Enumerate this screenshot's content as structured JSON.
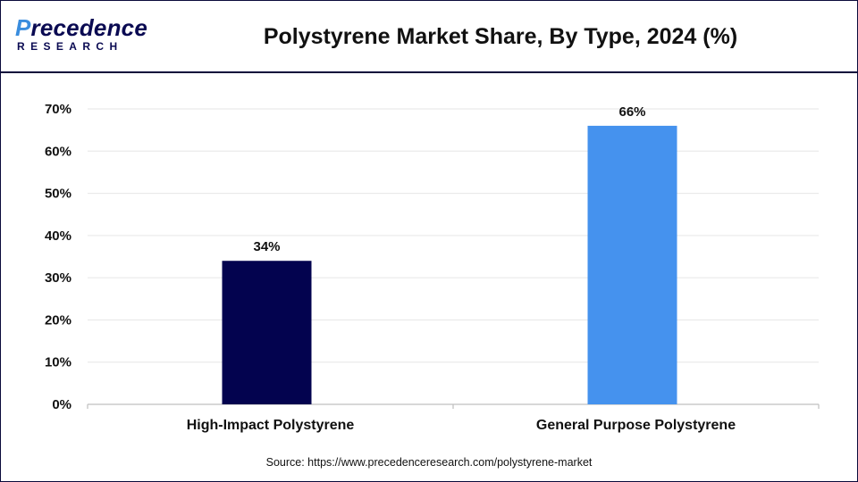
{
  "header": {
    "brand_top_prefix": "P",
    "brand_top": "recedence",
    "brand_bottom": "RESEARCH",
    "title": "Polystyrene Market Share, By Type, 2024 (%)"
  },
  "footer": {
    "source": "Source: https://www.precedenceresearch.com/polystyrene-market"
  },
  "colors": {
    "high_impact": "#03034f",
    "general_purpose": "#4592ee",
    "grid": "#e6e6e6",
    "axis": "#bfbfbf"
  },
  "chart_data": {
    "type": "bar",
    "title": "Polystyrene Market Share, By Type, 2024 (%)",
    "categories": [
      "High-Impact Polystyrene",
      "General Purpose Polystyrene"
    ],
    "values": [
      34,
      66
    ],
    "value_labels": [
      "34%",
      "66%"
    ],
    "ylim": [
      0,
      70
    ],
    "yticks": [
      "0%",
      "10%",
      "20%",
      "30%",
      "40%",
      "50%",
      "60%",
      "70%"
    ],
    "xlabel": "",
    "ylabel": "",
    "grid": true,
    "legend": "none"
  }
}
